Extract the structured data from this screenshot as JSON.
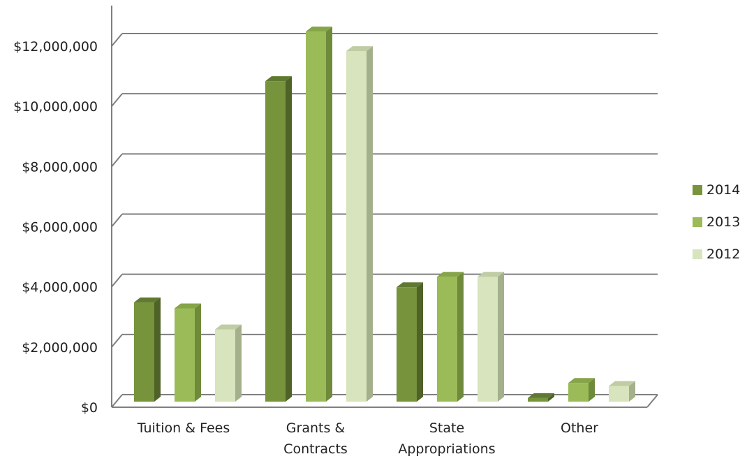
{
  "chart_data": {
    "type": "bar",
    "categories": [
      [
        "Tuition & Fees"
      ],
      [
        "Grants &",
        "Contracts"
      ],
      [
        "State",
        "Appropriations"
      ],
      [
        "Other"
      ]
    ],
    "series": [
      {
        "name": "2014",
        "values": [
          3300000,
          10650000,
          3800000,
          120000
        ],
        "color": "#77933c",
        "side": "#4f6228",
        "top": "#5f7a30"
      },
      {
        "name": "2013",
        "values": [
          3100000,
          12300000,
          4150000,
          620000
        ],
        "color": "#9bbb59",
        "side": "#6f8a3a",
        "top": "#86a448"
      },
      {
        "name": "2012",
        "values": [
          2400000,
          11650000,
          4150000,
          520000
        ],
        "color": "#d7e4bd",
        "side": "#a4b08c",
        "top": "#bfcca4"
      }
    ],
    "y_ticks": [
      "$0",
      "$2,000,000",
      "$4,000,000",
      "$6,000,000",
      "$8,000,000",
      "$10,000,000",
      "$12,000,000"
    ],
    "ylim": [
      0,
      12000000
    ],
    "grid": true,
    "legend_position": "right",
    "title": "",
    "xlabel": "",
    "ylabel": ""
  }
}
